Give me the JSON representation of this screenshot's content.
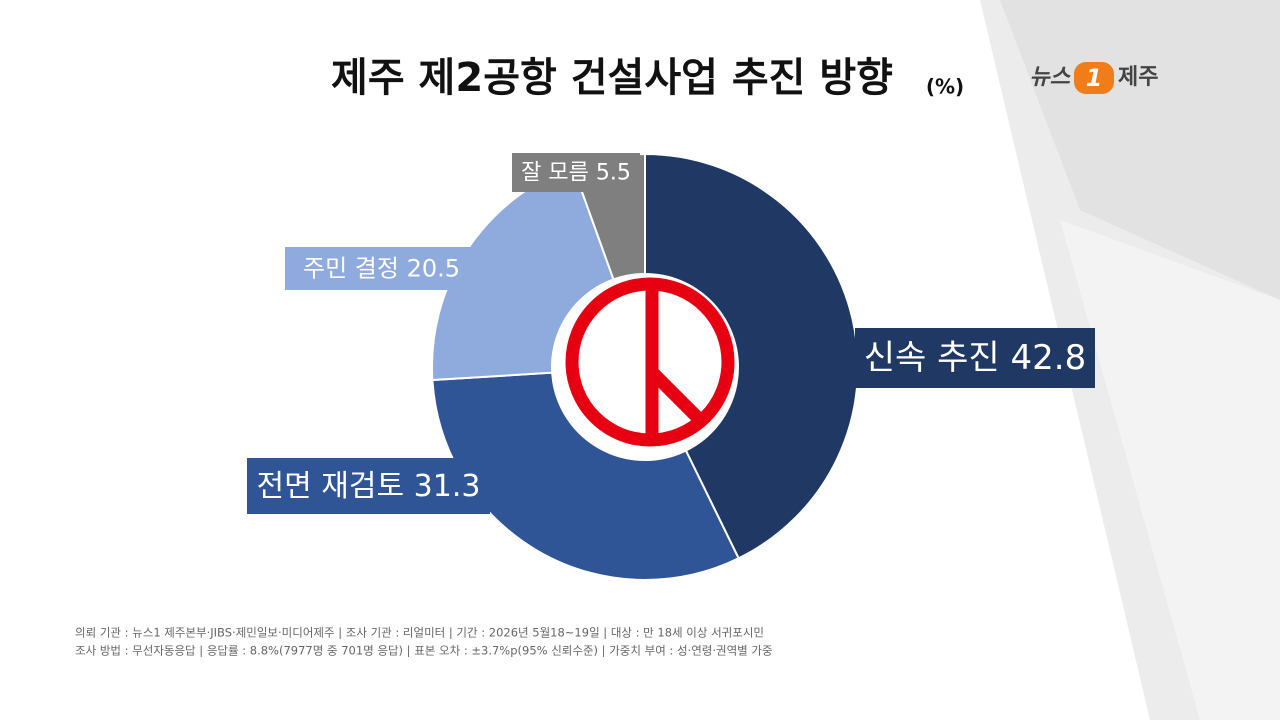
{
  "chart_data": {
    "type": "donut",
    "title": "제주 제2공항 건설사업 추진 방향",
    "unit": "(%)",
    "categories": [
      "신속 추진",
      "전면 재검토",
      "주민 결정",
      "잘 모름"
    ],
    "values": [
      42.8,
      31.3,
      20.5,
      5.5
    ],
    "colors": [
      "#203864",
      "#2f5597",
      "#8faadc",
      "#7f7f7f"
    ]
  },
  "logo": {
    "left": "뉴스",
    "mark": "1",
    "right": "제주"
  },
  "notes": [
    "의뢰 기관 : 뉴스1 제주본부·JIBS·제민일보·미디어제주 | 조사 기관 : 리얼미터 | 기간 : 2026년 5월18~19일 | 대상 : 만 18세 이상 서귀포시민",
    "조사 방법 : 무선자동응답 | 응답률 : 8.8%(7977명 중 701명 응답) | 표본 오차 : ±3.7%p(95% 신뢰수준) | 가중치 부여 : 성·연령·권역별 가중"
  ]
}
